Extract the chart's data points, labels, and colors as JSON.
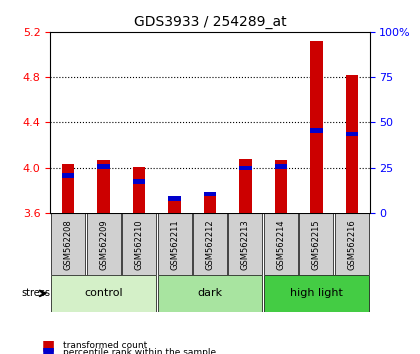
{
  "title": "GDS3933 / 254289_at",
  "samples": [
    "GSM562208",
    "GSM562209",
    "GSM562210",
    "GSM562211",
    "GSM562212",
    "GSM562213",
    "GSM562214",
    "GSM562215",
    "GSM562216"
  ],
  "red_values": [
    4.03,
    4.07,
    4.01,
    3.74,
    3.77,
    4.08,
    4.07,
    5.12,
    4.82
  ],
  "blue_values": [
    3.93,
    4.01,
    3.88,
    3.73,
    3.77,
    4.0,
    4.01,
    4.33,
    4.3
  ],
  "y_min": 3.6,
  "y_max": 5.2,
  "y_ticks_left": [
    3.6,
    4.0,
    4.4,
    4.8,
    5.2
  ],
  "y_ticks_right": [
    0,
    25,
    50,
    75,
    100
  ],
  "groups": [
    {
      "label": "control",
      "indices": [
        0,
        1,
        2
      ],
      "color": "#d4f0c8"
    },
    {
      "label": "dark",
      "indices": [
        3,
        4,
        5
      ],
      "color": "#a8e4a0"
    },
    {
      "label": "high light",
      "indices": [
        6,
        7,
        8
      ],
      "color": "#44cc44"
    }
  ],
  "stress_label": "stress",
  "red_color": "#cc0000",
  "blue_color": "#0000cc",
  "grid_color": "#000000",
  "background_color": "#ffffff",
  "plot_bg_color": "#ffffff",
  "tick_area_color": "#cccccc",
  "bar_width": 0.35,
  "legend_red": "transformed count",
  "legend_blue": "percentile rank within the sample"
}
